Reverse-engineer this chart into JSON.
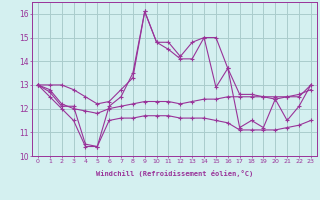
{
  "xlabel": "Windchill (Refroidissement éolien,°C)",
  "x": [
    0,
    1,
    2,
    3,
    4,
    5,
    6,
    7,
    8,
    9,
    10,
    11,
    12,
    13,
    14,
    15,
    16,
    17,
    18,
    19,
    20,
    21,
    22,
    23
  ],
  "line_main": [
    13.0,
    12.7,
    12.1,
    12.1,
    10.5,
    10.4,
    12.1,
    12.5,
    13.5,
    16.1,
    14.8,
    14.5,
    14.1,
    14.1,
    15.0,
    12.9,
    13.7,
    11.2,
    11.5,
    11.2,
    12.4,
    11.5,
    12.1,
    13.0
  ],
  "line_avg": [
    13.0,
    12.8,
    12.2,
    12.0,
    11.9,
    11.8,
    12.0,
    12.1,
    12.2,
    12.3,
    12.3,
    12.3,
    12.2,
    12.3,
    12.4,
    12.4,
    12.5,
    12.5,
    12.5,
    12.5,
    12.5,
    12.5,
    12.6,
    12.8
  ],
  "line_min": [
    13.0,
    12.5,
    12.0,
    11.5,
    10.4,
    10.4,
    11.5,
    11.6,
    11.6,
    11.7,
    11.7,
    11.7,
    11.6,
    11.6,
    11.6,
    11.5,
    11.4,
    11.1,
    11.1,
    11.1,
    11.1,
    11.2,
    11.3,
    11.5
  ],
  "line_max": [
    13.0,
    13.0,
    13.0,
    12.8,
    12.5,
    12.2,
    12.3,
    12.8,
    13.3,
    16.1,
    14.8,
    14.8,
    14.2,
    14.8,
    15.0,
    15.0,
    13.7,
    12.6,
    12.6,
    12.5,
    12.4,
    12.5,
    12.5,
    13.0
  ],
  "line_color": "#993399",
  "bg_color": "#d4f0f0",
  "grid_color": "#aacccc",
  "ylim": [
    10,
    16.5
  ],
  "yticks": [
    10,
    11,
    12,
    13,
    14,
    15,
    16
  ],
  "xticks": [
    0,
    1,
    2,
    3,
    4,
    5,
    6,
    7,
    8,
    9,
    10,
    11,
    12,
    13,
    14,
    15,
    16,
    17,
    18,
    19,
    20,
    21,
    22,
    23
  ]
}
